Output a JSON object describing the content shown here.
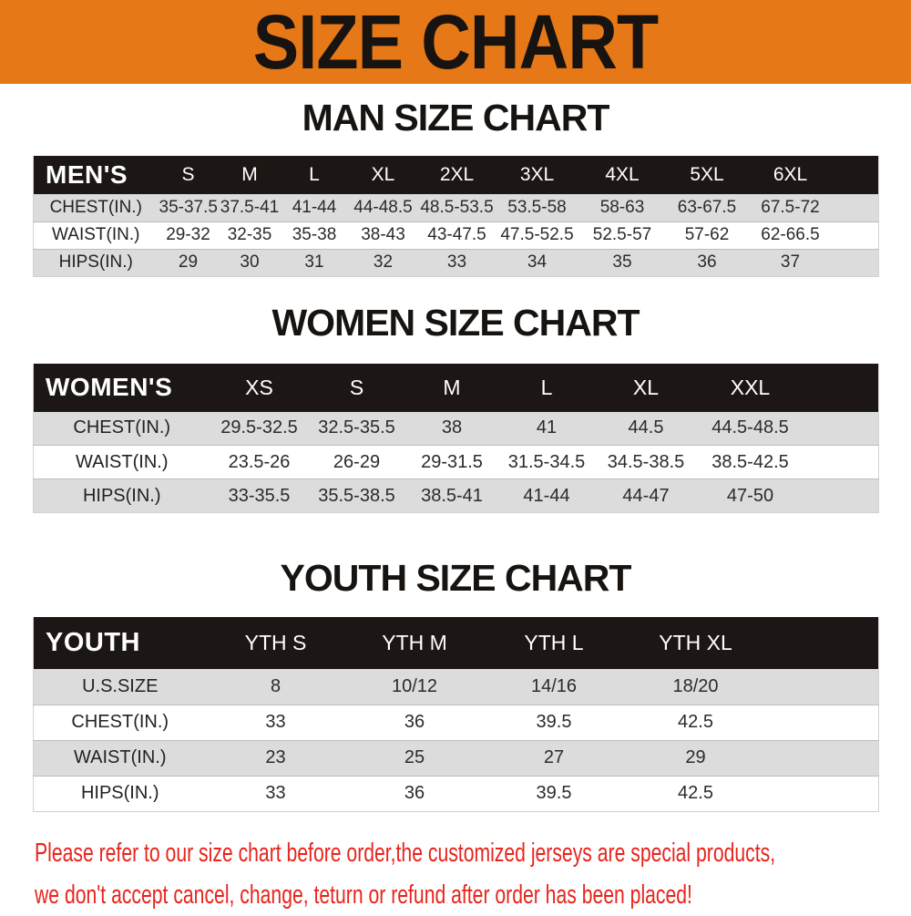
{
  "banner": {
    "title": "SIZE CHART"
  },
  "sections": [
    {
      "name": "men",
      "heading": "MAN SIZE CHART",
      "header": [
        "MEN'S",
        "S",
        "M",
        "L",
        "XL",
        "2XL",
        "3XL",
        "4XL",
        "5XL",
        "6XL"
      ],
      "rows": [
        {
          "label": "CHEST(IN.)",
          "values": [
            "35-37.5",
            "37.5-41",
            "41-44",
            "44-48.5",
            "48.5-53.5",
            "53.5-58",
            "58-63",
            "63-67.5",
            "67.5-72"
          ]
        },
        {
          "label": "WAIST(IN.)",
          "values": [
            "29-32",
            "32-35",
            "35-38",
            "38-43",
            "43-47.5",
            "47.5-52.5",
            "52.5-57",
            "57-62",
            "62-66.5"
          ]
        },
        {
          "label": "HIPS(IN.)",
          "values": [
            "29",
            "30",
            "31",
            "32",
            "33",
            "34",
            "35",
            "36",
            "37"
          ]
        }
      ]
    },
    {
      "name": "women",
      "heading": "WOMEN SIZE CHART",
      "header": [
        "WOMEN'S",
        "XS",
        "S",
        "M",
        "L",
        "XL",
        "XXL"
      ],
      "rows": [
        {
          "label": "CHEST(IN.)",
          "values": [
            "29.5-32.5",
            "32.5-35.5",
            "38",
            "41",
            "44.5",
            "44.5-48.5"
          ]
        },
        {
          "label": "WAIST(IN.)",
          "values": [
            "23.5-26",
            "26-29",
            "29-31.5",
            "31.5-34.5",
            "34.5-38.5",
            "38.5-42.5"
          ]
        },
        {
          "label": "HIPS(IN.)",
          "values": [
            "33-35.5",
            "35.5-38.5",
            "38.5-41",
            "41-44",
            "44-47",
            "47-50"
          ]
        }
      ]
    },
    {
      "name": "youth",
      "heading": "YOUTH SIZE CHART",
      "header": [
        "YOUTH",
        "YTH S",
        "YTH M",
        "YTH L",
        "YTH XL"
      ],
      "rows": [
        {
          "label": "U.S.SIZE",
          "values": [
            "8",
            "10/12",
            "14/16",
            "18/20"
          ]
        },
        {
          "label": "CHEST(IN.)",
          "values": [
            "33",
            "36",
            "39.5",
            "42.5"
          ]
        },
        {
          "label": "WAIST(IN.)",
          "values": [
            "23",
            "25",
            "27",
            "29"
          ]
        },
        {
          "label": "HIPS(IN.)",
          "values": [
            "33",
            "36",
            "39.5",
            "42.5"
          ]
        }
      ]
    }
  ],
  "note": {
    "lines": [
      "Please refer to our size chart before order,the customized jerseys are special products,",
      "we don't accept cancel, change, teturn or refund after order has been placed!"
    ]
  },
  "colors": {
    "banner_bg": "#e67817",
    "table_header_bg": "#1c1714",
    "row_shade": "#dcdcdc",
    "note_red": "#e8241c"
  }
}
